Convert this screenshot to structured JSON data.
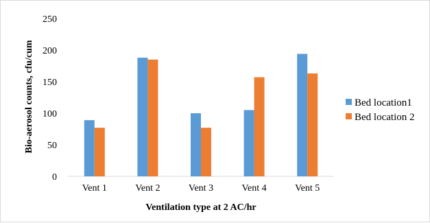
{
  "chart_data": {
    "type": "bar",
    "categories": [
      "Vent 1",
      "Vent 2",
      "Vent 3",
      "Vent 4",
      "Vent 5"
    ],
    "series": [
      {
        "name": "Bed location1",
        "color": "#5b9bd5",
        "values": [
          89,
          188,
          100,
          105,
          194
        ]
      },
      {
        "name": "Bed location 2",
        "color": "#ed7d31",
        "values": [
          77,
          185,
          77,
          157,
          163
        ]
      }
    ],
    "xlabel": "Ventilation type at 2 AC/hr",
    "ylabel": "Bio-aerosol counts, cfu/cum",
    "ylim": [
      0,
      250
    ],
    "yticks": [
      "0",
      "50",
      "100",
      "150",
      "200",
      "250"
    ],
    "grid": false,
    "legend_position": "right"
  }
}
